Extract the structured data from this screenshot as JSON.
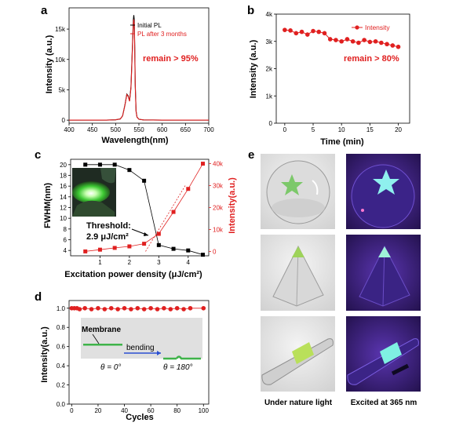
{
  "panel_labels": [
    "a",
    "b",
    "c",
    "d",
    "e"
  ],
  "chart_data": [
    {
      "type": "line",
      "panel": "a",
      "xlabel": "Wavelength(nm)",
      "ylabel": "Intensity (a.u.)",
      "xlim": [
        400,
        700
      ],
      "ylim": [
        -500,
        18500
      ],
      "x_ticks": [
        "400",
        "450",
        "500",
        "550",
        "600",
        "650",
        "700"
      ],
      "y_ticks": [
        "0",
        "5k",
        "10k",
        "15k"
      ],
      "series": [
        {
          "name": "Initial PL",
          "color": "#000000",
          "x": [
            400,
            480,
            500,
            510,
            515,
            520,
            524,
            527,
            530,
            533,
            536,
            538,
            539,
            540,
            541,
            542,
            544,
            546,
            550,
            560,
            600,
            700
          ],
          "y": [
            0,
            0,
            50,
            200,
            700,
            2500,
            4300,
            4000,
            3200,
            5500,
            12000,
            16500,
            17300,
            16500,
            12000,
            6000,
            1500,
            500,
            150,
            40,
            0,
            0
          ]
        },
        {
          "name": "PL after 3 months",
          "color": "#e02020",
          "x": [
            400,
            480,
            500,
            510,
            515,
            520,
            524,
            527,
            530,
            533,
            536,
            538,
            539,
            540,
            541,
            542,
            544,
            546,
            550,
            560,
            600,
            700
          ],
          "y": [
            0,
            0,
            50,
            200,
            700,
            2450,
            4200,
            3900,
            3100,
            5300,
            11600,
            15900,
            16600,
            15800,
            11500,
            5700,
            1400,
            480,
            140,
            40,
            0,
            0
          ]
        }
      ],
      "annotation": "remain > 95%"
    },
    {
      "type": "line",
      "panel": "b",
      "xlabel": "Time (min)",
      "ylabel": "Intensity (a.u.)",
      "xlim": [
        -1.5,
        22
      ],
      "ylim": [
        0,
        4000
      ],
      "x_ticks": [
        "0",
        "5",
        "10",
        "15",
        "20"
      ],
      "y_ticks": [
        "0",
        "1k",
        "2k",
        "3k",
        "4k"
      ],
      "series": [
        {
          "name": "Intensity",
          "color": "#e02020",
          "x": [
            0,
            1,
            2,
            3,
            4,
            5,
            6,
            7,
            8,
            9,
            10,
            11,
            12,
            13,
            14,
            15,
            16,
            17,
            18,
            19,
            20
          ],
          "y": [
            3420,
            3400,
            3300,
            3350,
            3250,
            3380,
            3350,
            3300,
            3080,
            3050,
            3000,
            3080,
            3000,
            2950,
            3050,
            2980,
            3000,
            2950,
            2900,
            2850,
            2800
          ]
        }
      ],
      "annotation": "remain > 80%"
    },
    {
      "type": "line",
      "panel": "c",
      "xlabel": "Excitation power density (μJ/cm²)",
      "ylabel": "FWHM(nm)",
      "ylabel_right": "Intensity(a.u.)",
      "xlim": [
        0,
        4.7
      ],
      "ylim": [
        3,
        21
      ],
      "ylim_right": [
        -2000,
        42000
      ],
      "x_ticks": [
        "1",
        "2",
        "3",
        "4"
      ],
      "y_ticks": [
        "4",
        "6",
        "8",
        "10",
        "12",
        "14",
        "16",
        "18",
        "20"
      ],
      "y_ticks_right": [
        "0",
        "10k",
        "20k",
        "30k",
        "40k"
      ],
      "series": [
        {
          "name": "FWHM",
          "color": "#000000",
          "axis": "left",
          "x": [
            0.5,
            1,
            1.5,
            2,
            2.5,
            3,
            3.5,
            4,
            4.5
          ],
          "y": [
            20,
            20,
            20,
            19,
            17,
            5,
            4.3,
            4,
            3.2
          ]
        },
        {
          "name": "Intensity",
          "color": "#e02020",
          "axis": "right",
          "x": [
            0.5,
            1,
            1.5,
            2,
            2.5,
            3,
            3.5,
            4,
            4.5
          ],
          "y": [
            0,
            800,
            1600,
            2300,
            3500,
            8000,
            18000,
            28500,
            40000
          ]
        }
      ],
      "annotation": [
        "Threshold:",
        "2.9 μJ/cm²"
      ]
    },
    {
      "type": "scatter",
      "panel": "d",
      "xlabel": "Cycles",
      "ylabel": "Intensity(a.u.)",
      "xlim": [
        -2,
        104
      ],
      "ylim": [
        0,
        1.08
      ],
      "x_ticks": [
        "0",
        "20",
        "40",
        "60",
        "80",
        "100"
      ],
      "y_ticks": [
        "0.0",
        "0.2",
        "0.4",
        "0.6",
        "0.8",
        "1.0"
      ],
      "series": [
        {
          "name": "Intensity",
          "color": "#e02020",
          "x": [
            0,
            2,
            4,
            6,
            10,
            15,
            20,
            25,
            30,
            35,
            40,
            45,
            50,
            55,
            60,
            65,
            70,
            75,
            80,
            85,
            90,
            100
          ],
          "y": [
            1.0,
            1.0,
            1.0,
            0.99,
            1.0,
            0.99,
            1.0,
            0.99,
            1.0,
            0.99,
            1.0,
            0.99,
            1.0,
            0.99,
            1.0,
            0.99,
            1.0,
            0.99,
            1.0,
            0.99,
            1.0,
            1.0
          ]
        }
      ],
      "inset": {
        "membrane": "Membrane",
        "bending": "bending",
        "theta0": "θ = 0°",
        "theta180": "θ = 180°"
      }
    }
  ],
  "panel_e": {
    "captions": [
      "Under nature light",
      "Excited at 365 nm"
    ],
    "colors": {
      "natural_bg": "#e9e9e9",
      "uv_bg": "#3a1f74",
      "green": "#7cf25a",
      "cyan": "#7fe6e6"
    }
  }
}
